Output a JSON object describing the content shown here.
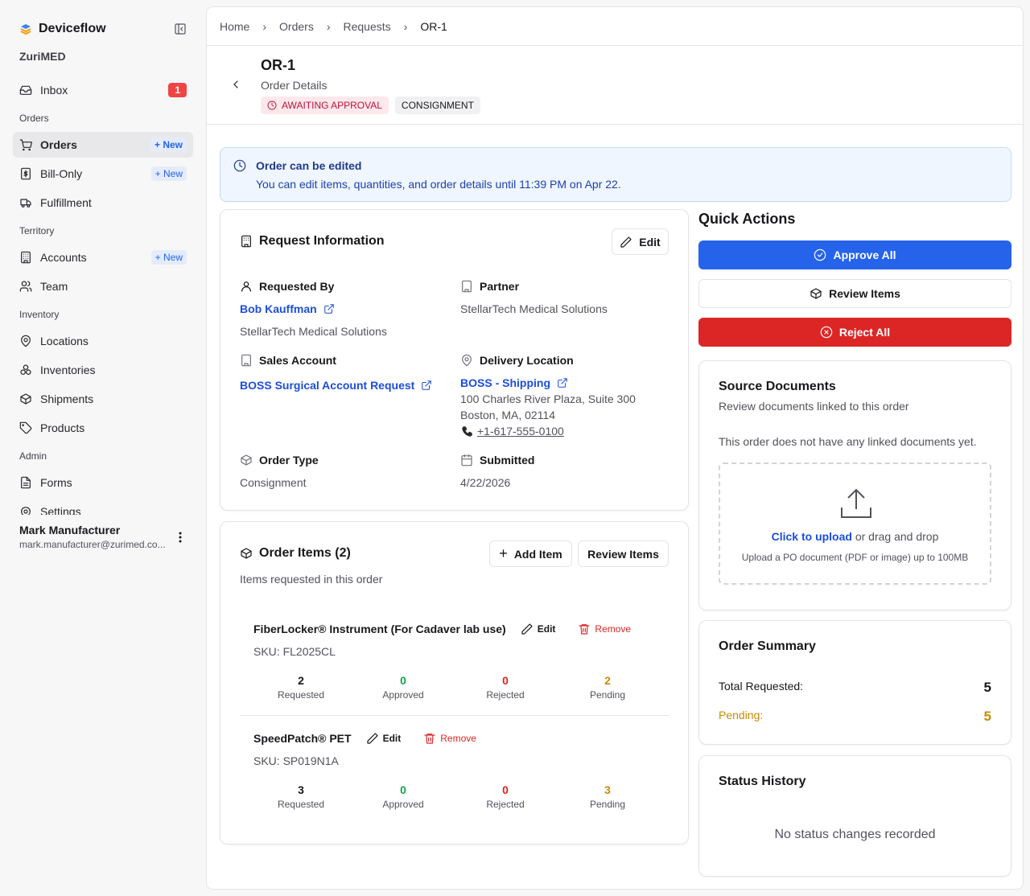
{
  "sidebar": {
    "brand": "Deviceflow",
    "org": "ZuriMED",
    "inbox": {
      "label": "Inbox",
      "badge": 1
    },
    "sections": [
      {
        "title": "Orders",
        "items": [
          {
            "label": "Orders",
            "action": "New"
          },
          {
            "label": "Bill-Only",
            "action": "New"
          },
          {
            "label": "Fulfillment"
          }
        ]
      },
      {
        "title": "Territory",
        "items": [
          {
            "label": "Accounts",
            "action": "New"
          },
          {
            "label": "Team"
          }
        ]
      },
      {
        "title": "Inventory",
        "items": [
          {
            "label": "Locations"
          },
          {
            "label": "Inventories"
          },
          {
            "label": "Shipments"
          },
          {
            "label": "Products"
          }
        ]
      },
      {
        "title": "Admin",
        "items": [
          {
            "label": "Forms"
          },
          {
            "label": "Settings"
          }
        ]
      }
    ],
    "user": {
      "name": "Mark Manufacturer",
      "email": "mark.manufacturer@zurimed.co..."
    }
  },
  "breadcrumb": [
    "Home",
    "Orders",
    "Requests",
    "OR-1"
  ],
  "header": {
    "title": "OR-1",
    "subtitle": "Order Details",
    "tags": [
      "AWAITING APPROVAL",
      "CONSIGNMENT"
    ]
  },
  "notice": {
    "title": "Order can be edited",
    "text": "You can edit items, quantities, and order details until 11:39 PM on Apr 22."
  },
  "request_info": {
    "title": "Request Information",
    "edit": "Edit",
    "requested_by": {
      "label": "Requested By",
      "name": "Bob Kauffman",
      "org": "StellarTech Medical Solutions"
    },
    "partner": {
      "label": "Partner",
      "value": "StellarTech Medical Solutions"
    },
    "sales_account": {
      "label": "Sales Account",
      "value": "BOSS Surgical Account Request"
    },
    "delivery_location": {
      "label": "Delivery Location",
      "name": "BOSS - Shipping",
      "address": [
        "100 Charles River Plaza, Suite 300",
        "Boston, MA, 02114"
      ],
      "phone": "+1-617-555-0100"
    },
    "order_type": {
      "label": "Order Type",
      "value": "Consignment"
    },
    "submitted": {
      "label": "Submitted",
      "value": "4/22/2026"
    }
  },
  "order_items": {
    "title": "Order Items (2)",
    "subtitle": "Items requested in this order",
    "add": "Add Item",
    "review": "Review Items",
    "edit": "Edit",
    "remove": "Remove",
    "items": [
      {
        "name": "FiberLocker® Instrument (For Cadaver lab use)",
        "sku": "SKU: FL2025CL",
        "stats": [
          {
            "value": 2,
            "label": "Requested"
          },
          {
            "value": 0,
            "label": "Approved"
          },
          {
            "value": 0,
            "label": "Rejected"
          },
          {
            "value": 2,
            "label": "Pending"
          }
        ]
      },
      {
        "name": "SpeedPatch® PET",
        "sku": "SKU: SP019N1A",
        "stats": [
          {
            "value": 3,
            "label": "Requested"
          },
          {
            "value": 0,
            "label": "Approved"
          },
          {
            "value": 0,
            "label": "Rejected"
          },
          {
            "value": 3,
            "label": "Pending"
          }
        ]
      }
    ]
  },
  "quick_actions": {
    "title": "Quick Actions",
    "approve": "Approve All",
    "review": "Review Items",
    "reject": "Reject All"
  },
  "source_documents": {
    "title": "Source Documents",
    "subtitle": "Review documents linked to this order",
    "empty": "This order does not have any linked documents yet.",
    "upload_link": "Click to upload",
    "upload_text": "or drag and drop",
    "upload_hint": "Upload a PO document (PDF or image) up to 100MB"
  },
  "order_summary": {
    "title": "Order Summary",
    "rows": [
      {
        "label": "Total Requested:",
        "value": 5
      },
      {
        "label": "Pending:",
        "value": 5
      }
    ]
  },
  "status_history": {
    "title": "Status History",
    "empty": "No status changes recorded"
  }
}
